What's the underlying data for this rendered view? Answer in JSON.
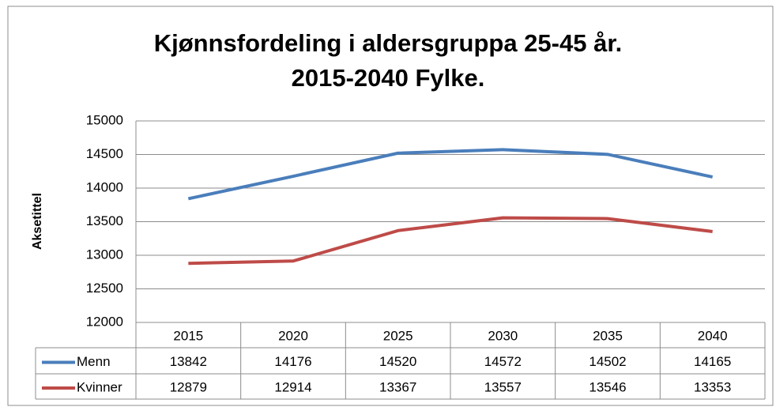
{
  "chart_data": {
    "type": "line",
    "title": [
      "Kjønnsfordeling i aldersgruppa 25-45 år.",
      "2015-2040 Fylke."
    ],
    "y_label": "Aksetittel",
    "categories": [
      "2015",
      "2020",
      "2025",
      "2030",
      "2035",
      "2040"
    ],
    "series": [
      {
        "name": "Menn",
        "color": "#4a7ebb",
        "values": [
          13842,
          14176,
          14520,
          14572,
          14502,
          14165
        ]
      },
      {
        "name": "Kvinner",
        "color": "#be4b48",
        "values": [
          12879,
          12914,
          13367,
          13557,
          13546,
          13353
        ]
      }
    ],
    "ylim": [
      12000,
      15000
    ],
    "yticks": [
      12000,
      12500,
      13000,
      13500,
      14000,
      14500,
      15000
    ],
    "grid": true
  }
}
